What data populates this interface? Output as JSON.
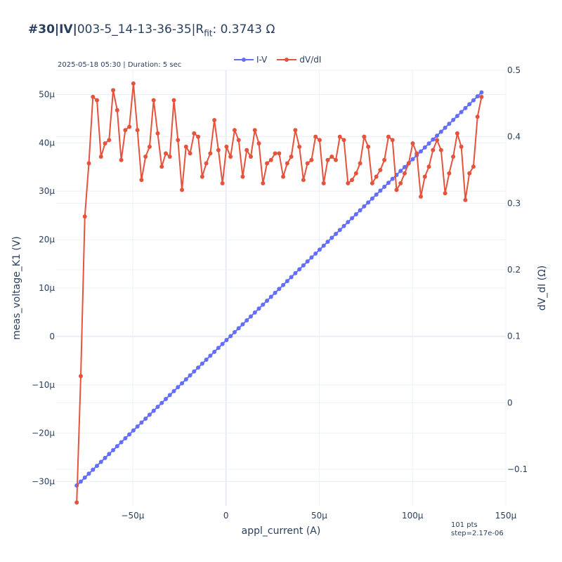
{
  "header": {
    "title_prefix": "#30|IV|",
    "title_main": "003-5_14-13-36-35|R",
    "title_sub": "fit",
    "title_suffix": ": 0.3743 Ω",
    "info": "2025-05-18 05:30 | Duration: 5 sec",
    "footnote_pts": "101 pts",
    "footnote_step": "step=2.17e-06"
  },
  "colors": {
    "iv": "#636efa",
    "dvdi": "#e5533d",
    "grid": "#ebf0f8",
    "zero": "#e8ecf3"
  },
  "chart_data": {
    "type": "line",
    "xlabel": "appl_current (A)",
    "ylabel": "meas_voltage_K1 (V)",
    "y2label": "dV_dI (Ω)",
    "xlim": [
      -9.1e-05,
      0.00015
    ],
    "ylim": [
      -3.5e-05,
      5.5e-05
    ],
    "y2lim": [
      -0.155,
      0.5
    ],
    "xticks": [
      -5e-05,
      0,
      5e-05,
      0.0001,
      0.00015
    ],
    "xtick_labels": [
      "−50μ",
      "0",
      "50μ",
      "100μ",
      "150μ"
    ],
    "yticks": [
      -3e-05,
      -2e-05,
      -1e-05,
      0,
      1e-05,
      2e-05,
      3e-05,
      4e-05,
      5e-05
    ],
    "ytick_labels": [
      "−30μ",
      "−20μ",
      "−10μ",
      "0",
      "10μ",
      "20μ",
      "30μ",
      "40μ",
      "50μ"
    ],
    "y2ticks": [
      -0.1,
      0,
      0.1,
      0.2,
      0.3,
      0.4,
      0.5
    ],
    "y2tick_labels": [
      "−0.1",
      "0",
      "0.1",
      "0.2",
      "0.3",
      "0.4",
      "0.5"
    ],
    "grid": true,
    "legend_position": "top-center",
    "series": [
      {
        "name": "I-V",
        "axis": "left",
        "x_start": -8e-05,
        "x_step": 2.17e-06,
        "slope_ohm": 0.3743,
        "y_start": -3.08e-05,
        "points": 101
      },
      {
        "name": "dV/dI",
        "axis": "right",
        "x_start": -8e-05,
        "x_step": 2.17e-06,
        "values": [
          -0.15,
          0.04,
          0.28,
          0.36,
          0.46,
          0.455,
          0.37,
          0.39,
          0.395,
          0.47,
          0.44,
          0.365,
          0.41,
          0.415,
          0.48,
          0.41,
          0.335,
          0.37,
          0.385,
          0.455,
          0.405,
          0.355,
          0.375,
          0.37,
          0.455,
          0.395,
          0.32,
          0.385,
          0.375,
          0.405,
          0.4,
          0.34,
          0.36,
          0.375,
          0.425,
          0.38,
          0.33,
          0.385,
          0.37,
          0.41,
          0.395,
          0.34,
          0.38,
          0.37,
          0.41,
          0.39,
          0.33,
          0.36,
          0.365,
          0.375,
          0.375,
          0.34,
          0.36,
          0.37,
          0.41,
          0.385,
          0.335,
          0.36,
          0.365,
          0.4,
          0.395,
          0.33,
          0.365,
          0.37,
          0.365,
          0.4,
          0.395,
          0.33,
          0.335,
          0.345,
          0.36,
          0.4,
          0.385,
          0.33,
          0.34,
          0.35,
          0.365,
          0.4,
          0.395,
          0.32,
          0.33,
          0.345,
          0.36,
          0.39,
          0.375,
          0.31,
          0.34,
          0.355,
          0.38,
          0.395,
          0.38,
          0.315,
          0.345,
          0.37,
          0.405,
          0.385,
          0.305,
          0.345,
          0.355,
          0.43,
          0.46
        ]
      }
    ]
  }
}
